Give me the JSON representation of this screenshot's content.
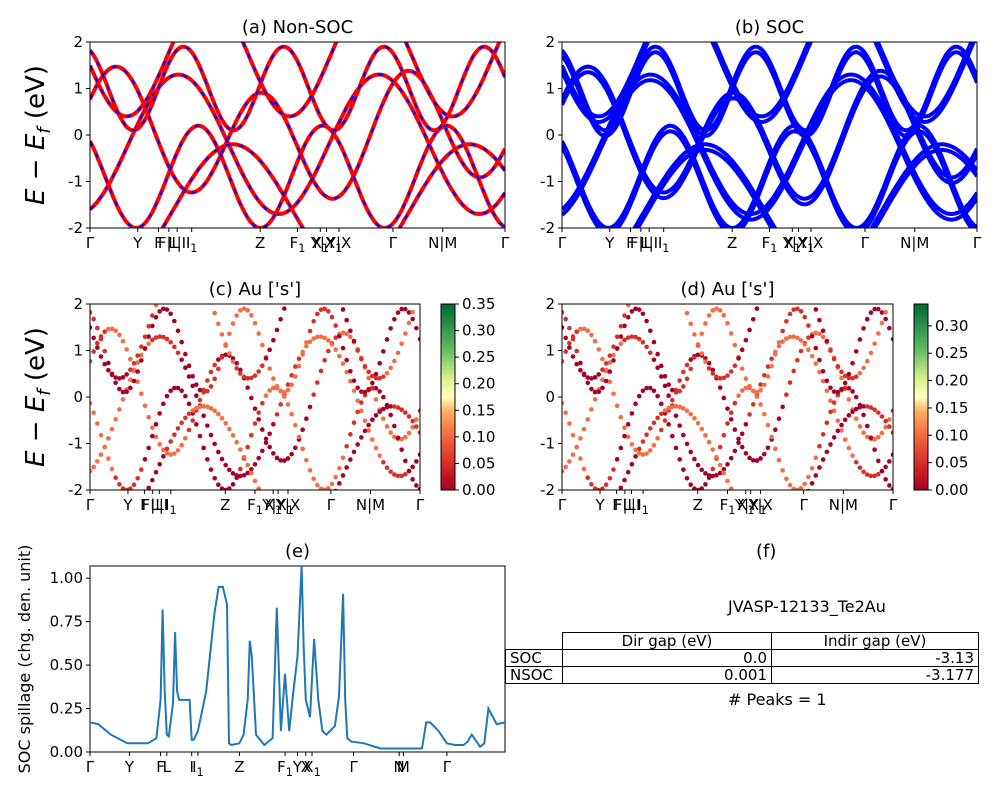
{
  "chart_data": [
    {
      "type": "line",
      "panel": "a",
      "title": "(a) Non-SOC",
      "ylabel": "$E-E_f$ (eV)",
      "ylim": [
        -2,
        2
      ],
      "yticks": [
        -2,
        -1,
        0,
        1,
        2
      ],
      "xticks": [
        "Γ",
        "Y",
        "F",
        "F|L",
        "L|I",
        "I_1",
        "Z",
        "F_1",
        "X_1",
        "Y|X_1",
        "Y|X",
        "Γ",
        "N|M",
        "Γ"
      ],
      "series": [
        {
          "style": "solid red"
        },
        {
          "style": "dashed blue"
        }
      ]
    },
    {
      "type": "line",
      "panel": "b",
      "title": "(b) SOC",
      "ylim": [
        -2,
        2
      ],
      "yticks": [
        -2,
        -1,
        0,
        1,
        2
      ],
      "xticks": [
        "Γ",
        "Y",
        "F",
        "F|L",
        "L|I",
        "I_1",
        "Z",
        "F_1",
        "X_1",
        "Y|X_1",
        "Y|X",
        "Γ",
        "N|M",
        "Γ"
      ],
      "series": [
        {
          "style": "solid blue"
        }
      ]
    },
    {
      "type": "scatter",
      "panel": "c",
      "title": "(c)  Au ['s']",
      "ylabel": "$E-E_f$ (eV)",
      "ylim": [
        -2,
        2
      ],
      "yticks": [
        -2,
        -1,
        0,
        1,
        2
      ],
      "xticks": [
        "Γ",
        "Y",
        "F",
        "F|L",
        "L|I",
        "I_1",
        "Z",
        "F_1",
        "X_1",
        "Y|X_1",
        "Y|X",
        "Γ",
        "N|M",
        "Γ"
      ],
      "colorbar": {
        "range": [
          0,
          0.35
        ],
        "ticks": [
          "0.00",
          "0.05",
          "0.10",
          "0.15",
          "0.20",
          "0.25",
          "0.30",
          "0.35"
        ]
      }
    },
    {
      "type": "scatter",
      "panel": "d",
      "title": "(d) Au ['s']",
      "ylim": [
        -2,
        2
      ],
      "yticks": [
        -2,
        -1,
        0,
        1,
        2
      ],
      "xticks": [
        "Γ",
        "Y",
        "F",
        "F|L",
        "L|I",
        "I_1",
        "Z",
        "F_1",
        "X_1",
        "Y|X_1",
        "Y|X",
        "Γ",
        "N|M",
        "Γ"
      ],
      "colorbar": {
        "range": [
          0,
          0.34
        ],
        "ticks": [
          "0.00",
          "0.05",
          "0.10",
          "0.15",
          "0.20",
          "0.25",
          "0.30"
        ]
      }
    },
    {
      "type": "line",
      "panel": "e",
      "title": "(e)",
      "ylabel": "SOC spillage (chg. den. unit)",
      "ylim": [
        0,
        1.07
      ],
      "yticks": [
        "0.00",
        "0.25",
        "0.50",
        "0.75",
        "1.00"
      ],
      "xticks": [
        "Γ",
        "Y",
        "F",
        "L",
        "I",
        "I_1",
        "Z",
        "F_1",
        "Y",
        "X",
        "X_1",
        "Γ",
        "N",
        "M",
        "Γ"
      ],
      "x": [
        0,
        0.02,
        0.05,
        0.09,
        0.14,
        0.16,
        0.17,
        0.175,
        0.18,
        0.185,
        0.19,
        0.2,
        0.205,
        0.21,
        0.215,
        0.22,
        0.24,
        0.245,
        0.25,
        0.26,
        0.28,
        0.3,
        0.31,
        0.32,
        0.33,
        0.335,
        0.34,
        0.36,
        0.37,
        0.38,
        0.385,
        0.39,
        0.4,
        0.42,
        0.44,
        0.45,
        0.46,
        0.47,
        0.48,
        0.49,
        0.5,
        0.51,
        0.515,
        0.52,
        0.53,
        0.54,
        0.55,
        0.56,
        0.57,
        0.59,
        0.6,
        0.61,
        0.615,
        0.62,
        0.63,
        0.66,
        0.7,
        0.75,
        0.8,
        0.81,
        0.82,
        0.84,
        0.86,
        0.88,
        0.9,
        0.91,
        0.92,
        0.94,
        0.95,
        0.96,
        0.98,
        1.0
      ],
      "y": [
        0.17,
        0.16,
        0.1,
        0.05,
        0.05,
        0.08,
        0.3,
        0.82,
        0.35,
        0.1,
        0.09,
        0.28,
        0.69,
        0.35,
        0.3,
        0.3,
        0.3,
        0.07,
        0.07,
        0.12,
        0.35,
        0.8,
        0.95,
        0.95,
        0.85,
        0.05,
        0.04,
        0.05,
        0.1,
        0.3,
        0.64,
        0.55,
        0.1,
        0.04,
        0.08,
        0.83,
        0.12,
        0.45,
        0.12,
        0.35,
        0.55,
        1.07,
        0.6,
        0.3,
        0.2,
        0.65,
        0.3,
        0.12,
        0.1,
        0.15,
        0.32,
        0.91,
        0.3,
        0.08,
        0.06,
        0.05,
        0.02,
        0.02,
        0.02,
        0.17,
        0.17,
        0.12,
        0.05,
        0.04,
        0.04,
        0.06,
        0.1,
        0.03,
        0.05,
        0.25,
        0.16,
        0.17
      ]
    }
  ],
  "panel_f": {
    "title": "(f)",
    "material": "JVASP-12133_Te2Au",
    "table": {
      "columns": [
        "Dir gap (eV)",
        "Indir gap (eV)"
      ],
      "rows": [
        {
          "label": "SOC",
          "dir": "0.0",
          "indir": "-3.13"
        },
        {
          "label": "NSOC",
          "dir": "0.001",
          "indir": "-3.177"
        }
      ]
    },
    "peaks_label": "# Peaks = 1"
  }
}
